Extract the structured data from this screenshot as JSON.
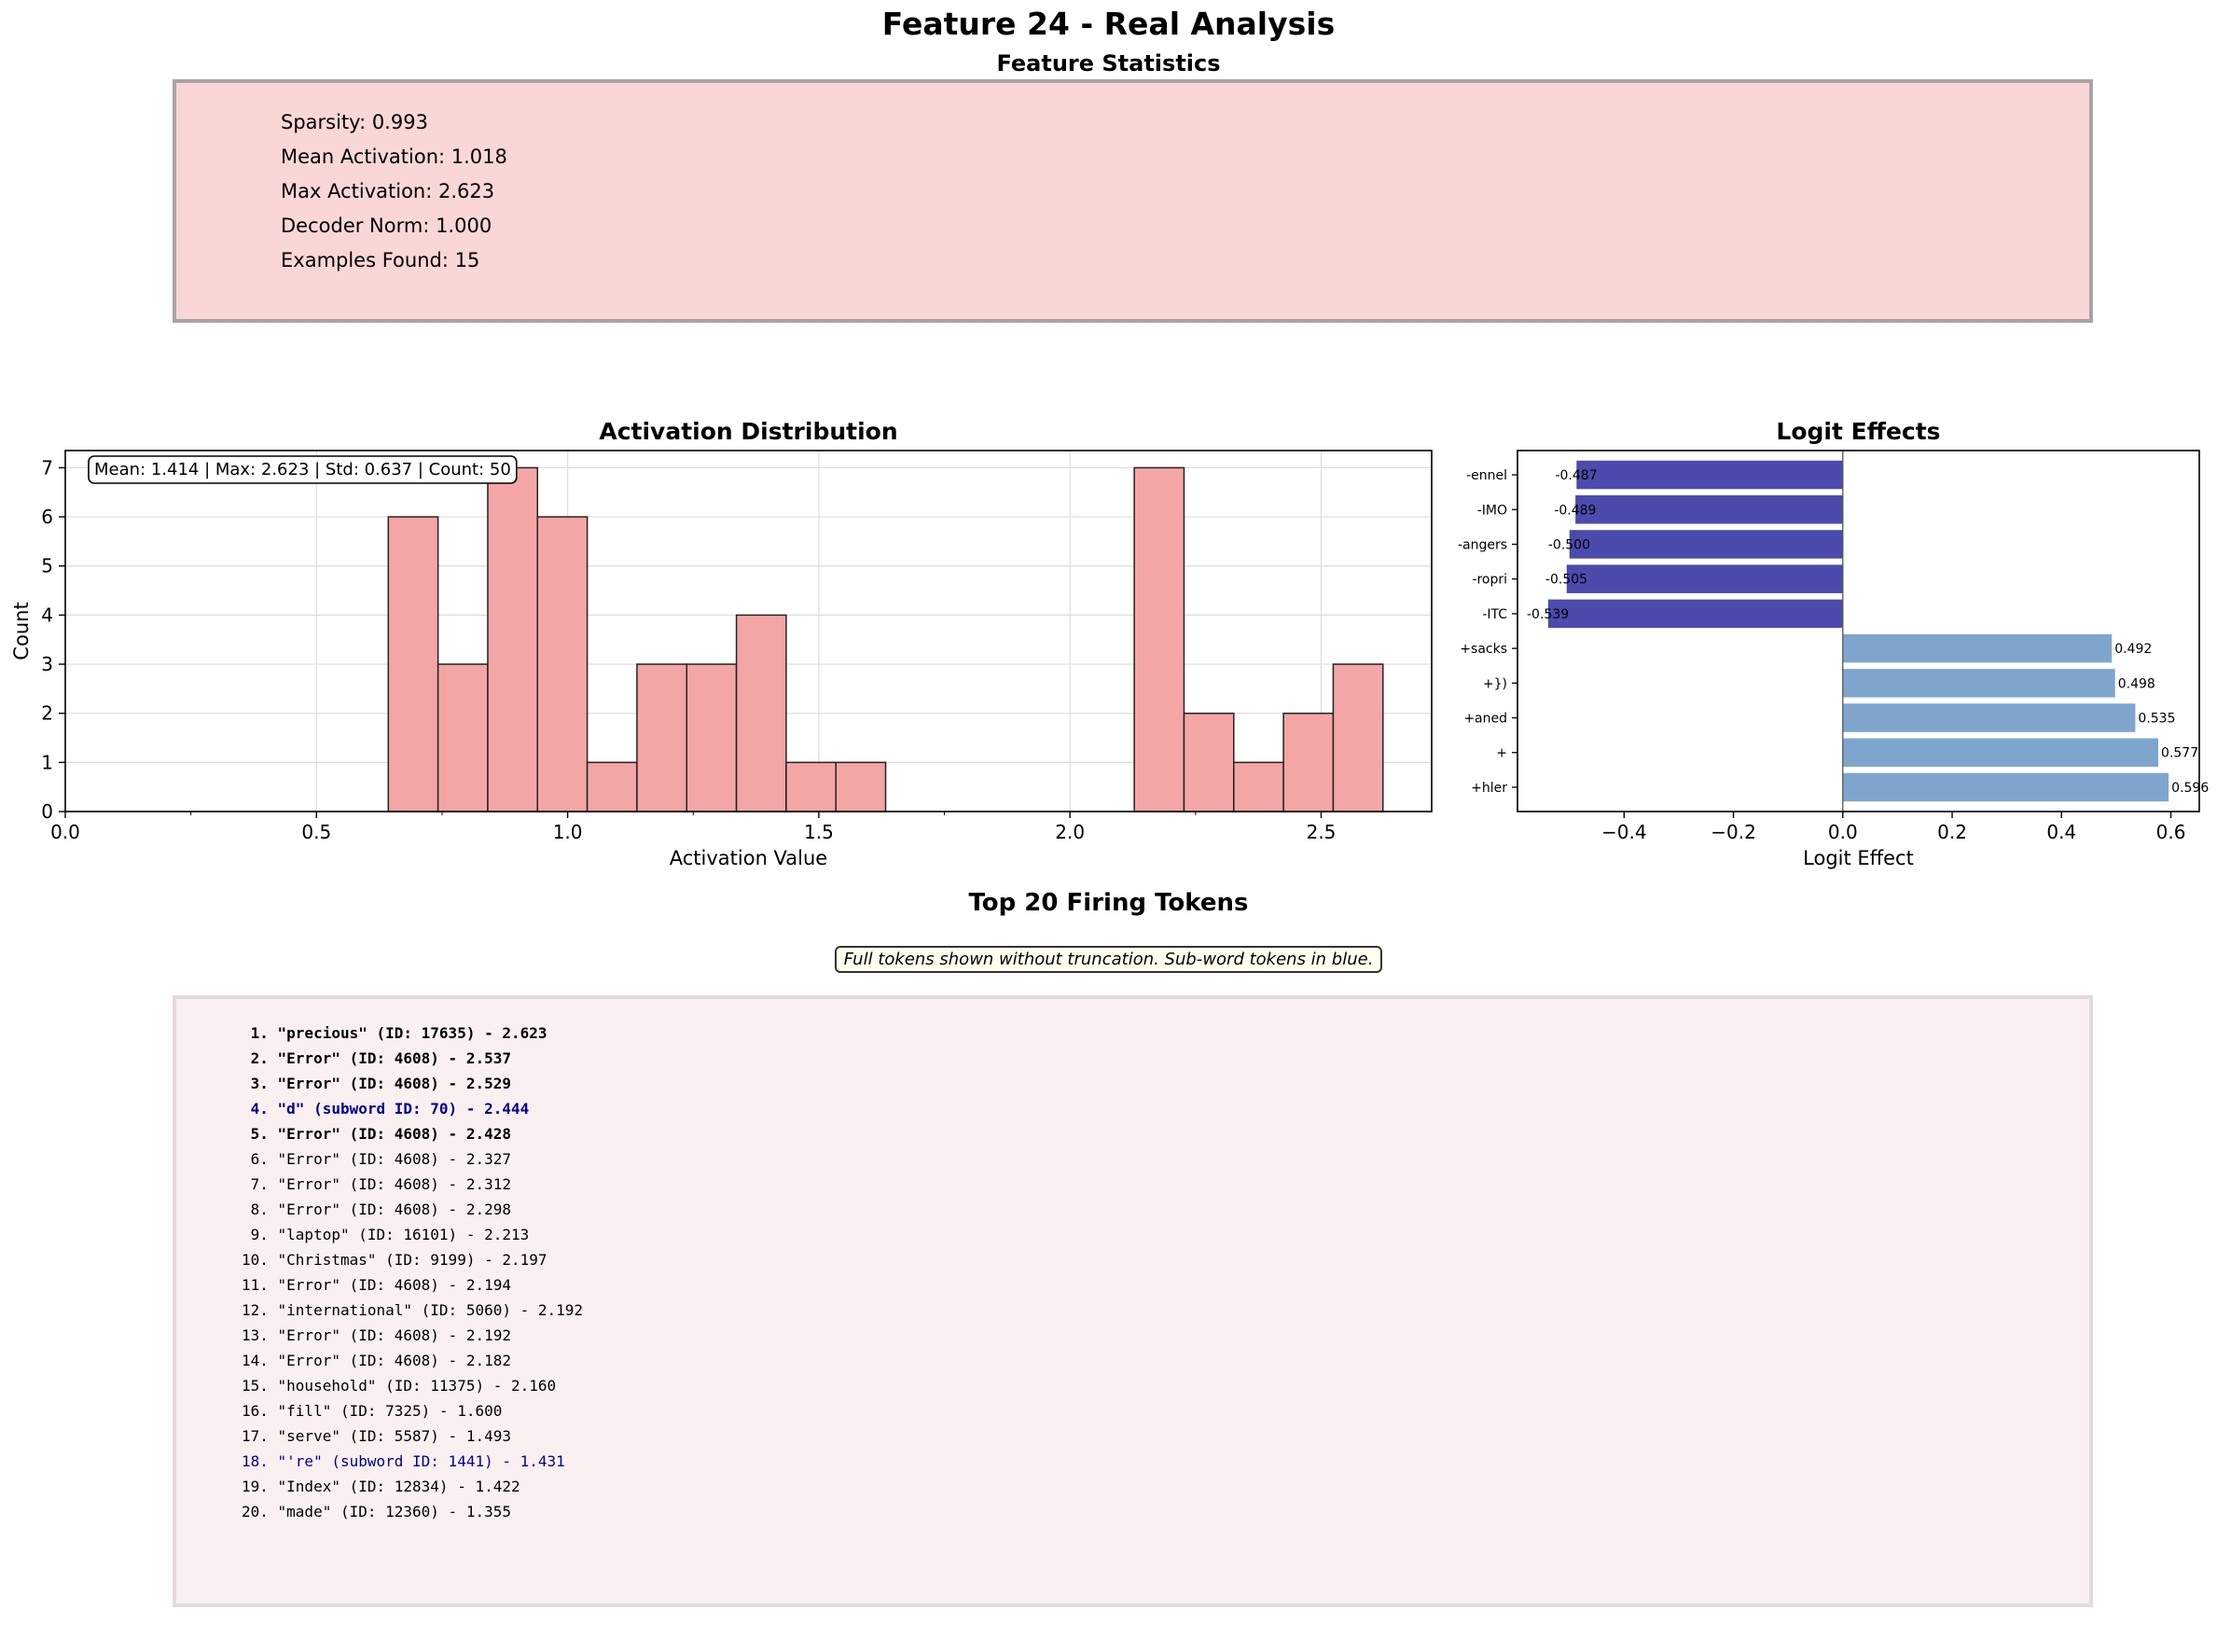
{
  "title": "Feature 24 - Real Analysis",
  "stats": {
    "title": "Feature Statistics",
    "lines": [
      "Sparsity: 0.993",
      "Mean Activation: 1.018",
      "Max Activation: 2.623",
      "Decoder Norm: 1.000",
      "Examples Found: 15"
    ]
  },
  "chart_data": [
    {
      "type": "bar",
      "title": "Activation Distribution",
      "xlabel": "Activation Value",
      "ylabel": "Count",
      "annotation": "Mean: 1.414 | Max: 2.623 | Std: 0.637 | Count: 50",
      "bin_edges": [
        0.643,
        0.742,
        0.841,
        0.94,
        1.039,
        1.138,
        1.237,
        1.336,
        1.435,
        1.534,
        1.633,
        1.732,
        1.831,
        1.93,
        2.029,
        2.128,
        2.227,
        2.326,
        2.425,
        2.524,
        2.623
      ],
      "counts": [
        6,
        3,
        7,
        6,
        1,
        3,
        3,
        4,
        1,
        1,
        0,
        0,
        0,
        0,
        0,
        7,
        2,
        1,
        2,
        3
      ],
      "xlim": [
        0.0,
        2.72
      ],
      "ylim": [
        0,
        7.35
      ],
      "xticks": [
        "0.0",
        "0.5",
        "1.0",
        "1.5",
        "2.0",
        "2.5"
      ],
      "yticks": [
        "0",
        "1",
        "2",
        "3",
        "4",
        "5",
        "6",
        "7"
      ],
      "bar_color": "#f4a6a6",
      "grid": true
    },
    {
      "type": "bar",
      "orientation": "horizontal",
      "title": "Logit Effects",
      "xlabel": "Logit Effect",
      "categories": [
        "-ennel",
        "-IMO",
        "-angers",
        "-ropri",
        "-ITC",
        "+sacks",
        "+})",
        "+aned",
        "+",
        "+hler"
      ],
      "values": [
        -0.487,
        -0.489,
        -0.5,
        -0.505,
        -0.539,
        0.492,
        0.498,
        0.535,
        0.577,
        0.596
      ],
      "labels": [
        "-0.487",
        "-0.489",
        "-0.500",
        "-0.505",
        "-0.539",
        "0.492",
        "0.498",
        "0.535",
        "0.577",
        "0.596"
      ],
      "xlim": [
        -0.595,
        0.652
      ],
      "xticks": [
        "−0.4",
        "−0.2",
        "0.0",
        "0.2",
        "0.4",
        "0.6"
      ],
      "negative_color": "#4b4bad",
      "positive_color": "#7ea6cc",
      "grid": false
    }
  ],
  "tokens": {
    "title": "Top 20 Firing Tokens",
    "note": "Full tokens shown without truncation. Sub-word tokens in blue.",
    "items": [
      {
        "text": " 1. \"precious\" (ID: 17635) - 2.623",
        "bold": true,
        "subword": false
      },
      {
        "text": " 2. \"Error\" (ID: 4608) - 2.537",
        "bold": true,
        "subword": false
      },
      {
        "text": " 3. \"Error\" (ID: 4608) - 2.529",
        "bold": true,
        "subword": false
      },
      {
        "text": " 4. \"d\" (subword ID: 70) - 2.444",
        "bold": true,
        "subword": true
      },
      {
        "text": " 5. \"Error\" (ID: 4608) - 2.428",
        "bold": true,
        "subword": false
      },
      {
        "text": " 6. \"Error\" (ID: 4608) - 2.327",
        "bold": false,
        "subword": false
      },
      {
        "text": " 7. \"Error\" (ID: 4608) - 2.312",
        "bold": false,
        "subword": false
      },
      {
        "text": " 8. \"Error\" (ID: 4608) - 2.298",
        "bold": false,
        "subword": false
      },
      {
        "text": " 9. \"laptop\" (ID: 16101) - 2.213",
        "bold": false,
        "subword": false
      },
      {
        "text": "10. \"Christmas\" (ID: 9199) - 2.197",
        "bold": false,
        "subword": false
      },
      {
        "text": "11. \"Error\" (ID: 4608) - 2.194",
        "bold": false,
        "subword": false
      },
      {
        "text": "12. \"international\" (ID: 5060) - 2.192",
        "bold": false,
        "subword": false
      },
      {
        "text": "13. \"Error\" (ID: 4608) - 2.192",
        "bold": false,
        "subword": false
      },
      {
        "text": "14. \"Error\" (ID: 4608) - 2.182",
        "bold": false,
        "subword": false
      },
      {
        "text": "15. \"household\" (ID: 11375) - 2.160",
        "bold": false,
        "subword": false
      },
      {
        "text": "16. \"fill\" (ID: 7325) - 1.600",
        "bold": false,
        "subword": false
      },
      {
        "text": "17. \"serve\" (ID: 5587) - 1.493",
        "bold": false,
        "subword": false
      },
      {
        "text": "18. \"'re\" (subword ID: 1441) - 1.431",
        "bold": false,
        "subword": true
      },
      {
        "text": "19. \"Index\" (ID: 12834) - 1.422",
        "bold": false,
        "subword": false
      },
      {
        "text": "20. \"made\" (ID: 12360) - 1.355",
        "bold": false,
        "subword": false
      }
    ]
  }
}
